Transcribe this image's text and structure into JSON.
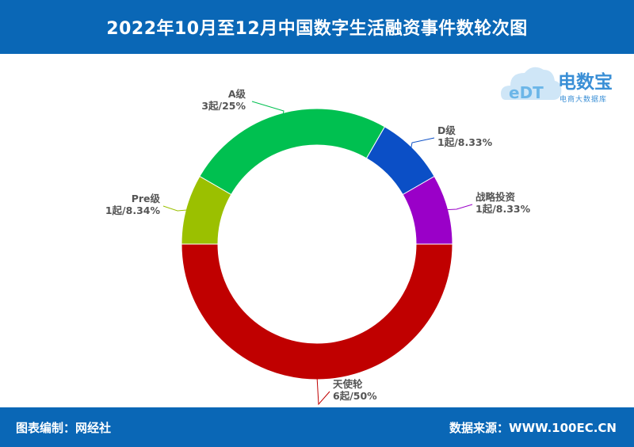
{
  "title": "2022年10月至12月中国数字生活融资事件数轮次图",
  "footer": {
    "left": "图表编制：网经社",
    "right": "数据来源：WWW.100EC.CN"
  },
  "logo": {
    "name": "电数宝",
    "subtitle": "电商大数据库",
    "mark": "eDT"
  },
  "chart_data": {
    "type": "pie",
    "donut": true,
    "slices": [
      {
        "name": "A级",
        "value": 3,
        "label": "3起/25%",
        "color": "#00c050"
      },
      {
        "name": "D级",
        "value": 1,
        "label": "1起/8.33%",
        "color": "#0b4fc6"
      },
      {
        "name": "战略投资",
        "value": 1,
        "label": "1起/8.33%",
        "color": "#9a00c8"
      },
      {
        "name": "天使轮",
        "value": 6,
        "label": "6起/50%",
        "color": "#c00000"
      },
      {
        "name": "Pre级",
        "value": 1,
        "label": "1起/8.34%",
        "color": "#9bc000"
      }
    ]
  }
}
